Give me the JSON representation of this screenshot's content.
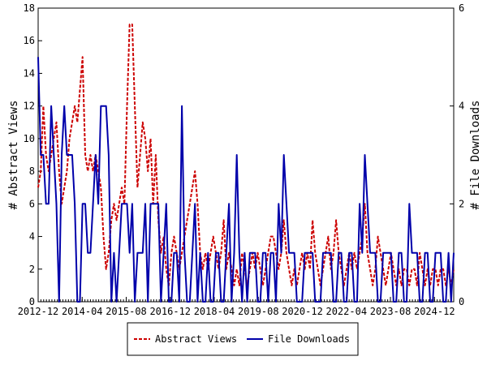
{
  "chart_data": {
    "type": "line",
    "ylabel_left": "# Abstract Views",
    "ylabel_right": "# File Downloads",
    "ylim_left": [
      0,
      18
    ],
    "ylim_right": [
      0,
      6
    ],
    "yticks_left": [
      "0",
      "2",
      "4",
      "6",
      "8",
      "10",
      "12",
      "14",
      "16",
      "18"
    ],
    "yticks_right": [
      "0",
      "2",
      "4",
      "6"
    ],
    "x_start": "2012-12",
    "x_end": "2025-07",
    "xticks": [
      "2012-12",
      "2014-04",
      "2015-08",
      "2016-12",
      "2018-04",
      "2019-08",
      "2020-12",
      "2022-04",
      "2023-08",
      "2024-12"
    ],
    "legend": {
      "placement": "bottom-center"
    },
    "series": [
      {
        "name": "Abstract Views",
        "axis": "left",
        "color": "#cc0000",
        "style": "dashed",
        "values": [
          7,
          8,
          12,
          9,
          8,
          9,
          10,
          11,
          8,
          6,
          7,
          8,
          10,
          11,
          12,
          11,
          13,
          15,
          9,
          8,
          9,
          8,
          9,
          8,
          7,
          4,
          2,
          3,
          5,
          6,
          5,
          6,
          7,
          6,
          12,
          17,
          17,
          12,
          7,
          9,
          11,
          10,
          8,
          10,
          6,
          9,
          5,
          3,
          4,
          2,
          1,
          3,
          4,
          3,
          2,
          3,
          4,
          5,
          6,
          7,
          8,
          6,
          3,
          2,
          3,
          2,
          3,
          4,
          3,
          2,
          3,
          5,
          2,
          3,
          2,
          1,
          2,
          1,
          3,
          2,
          1,
          2,
          3,
          2,
          3,
          2,
          1,
          2,
          3,
          4,
          4,
          3,
          2,
          3,
          5,
          3,
          2,
          1,
          2,
          1,
          2,
          3,
          2,
          3,
          2,
          5,
          3,
          2,
          1,
          2,
          3,
          4,
          2,
          3,
          5,
          3,
          2,
          1,
          2,
          3,
          2,
          3,
          2,
          3,
          4,
          6,
          3,
          2,
          1,
          2,
          4,
          3,
          2,
          1,
          2,
          3,
          2,
          1,
          2,
          1,
          2,
          2,
          1,
          2,
          2,
          1,
          3,
          2,
          1,
          2,
          1,
          2,
          2,
          1,
          2,
          2,
          1,
          2,
          1,
          2
        ]
      },
      {
        "name": "File Downloads",
        "axis": "right",
        "color": "#0000aa",
        "style": "solid",
        "values": [
          5,
          3,
          3,
          2,
          2,
          4,
          3,
          2,
          0,
          3,
          4,
          3,
          3,
          3,
          2,
          0,
          0,
          2,
          2,
          1,
          1,
          2,
          3,
          2,
          4,
          4,
          4,
          3,
          0,
          1,
          0,
          1,
          2,
          2,
          2,
          1,
          2,
          0,
          1,
          1,
          1,
          2,
          0,
          2,
          2,
          2,
          2,
          0,
          1,
          2,
          0,
          0,
          1,
          1,
          0,
          4,
          1,
          0,
          0,
          1,
          2,
          0,
          1,
          0,
          0,
          1,
          0,
          0,
          1,
          1,
          0,
          0,
          1,
          2,
          0,
          1,
          3,
          1,
          0,
          1,
          0,
          1,
          1,
          1,
          0,
          0,
          1,
          1,
          0,
          1,
          1,
          0,
          2,
          1,
          3,
          2,
          1,
          1,
          1,
          0,
          0,
          0,
          1,
          1,
          1,
          1,
          0,
          0,
          0,
          1,
          1,
          1,
          1,
          0,
          0,
          1,
          1,
          0,
          0,
          1,
          1,
          0,
          0,
          2,
          1,
          3,
          2,
          1,
          1,
          1,
          0,
          0,
          1,
          1,
          1,
          1,
          0,
          0,
          1,
          1,
          0,
          0,
          2,
          1,
          1,
          1,
          0,
          0,
          1,
          1,
          0,
          0,
          1,
          1,
          1,
          0,
          0,
          1,
          0,
          1
        ]
      }
    ]
  }
}
